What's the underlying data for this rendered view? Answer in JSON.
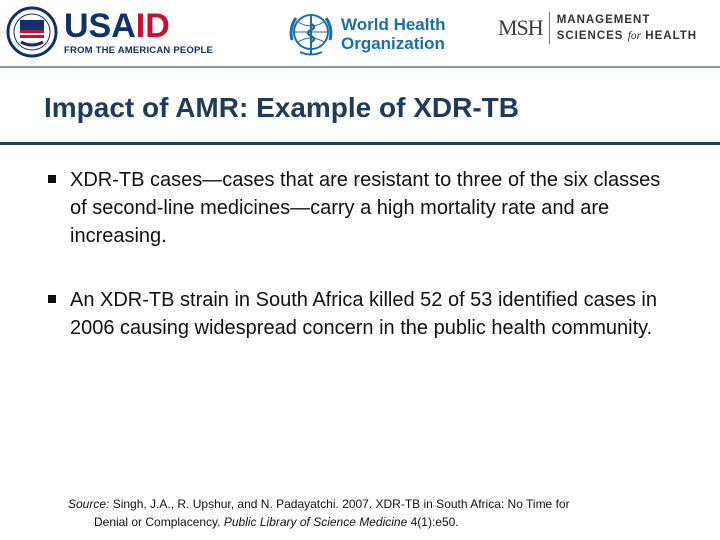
{
  "logos": {
    "usaid": {
      "word_blue": "USA",
      "word_red": "ID",
      "tagline": "FROM THE AMERICAN PEOPLE"
    },
    "who": {
      "line1": "World Health",
      "line2": "Organization"
    },
    "msh": {
      "mark": "MSH",
      "line1": "MANAGEMENT",
      "line2_a": "SCIENCES ",
      "line2_for": "for",
      "line2_b": " HEALTH"
    }
  },
  "slide": {
    "title": "Impact of AMR: Example of XDR-TB",
    "bullets": [
      "XDR-TB cases—cases that are resistant to three of the six classes of second-line medicines—carry a high mortality rate and are increasing.",
      "An XDR-TB strain in South Africa killed 52 of 53 identified cases in 2006 causing widespread concern in the public health community."
    ],
    "source": {
      "label": "Source:",
      "authors": " Singh, J.A., R. Upshur, and N. Padayatchi. 2007. XDR-TB in South Africa: No Time for",
      "cont_plain": "Denial or Complacency. ",
      "journal": "Public Library of Science Medicine",
      "issue": " 4(1):e50."
    }
  },
  "colors": {
    "title": "#1f3b59",
    "usaid_blue": "#0f2f6d",
    "usaid_red": "#c8102e",
    "who_blue": "#1a6fa8"
  }
}
